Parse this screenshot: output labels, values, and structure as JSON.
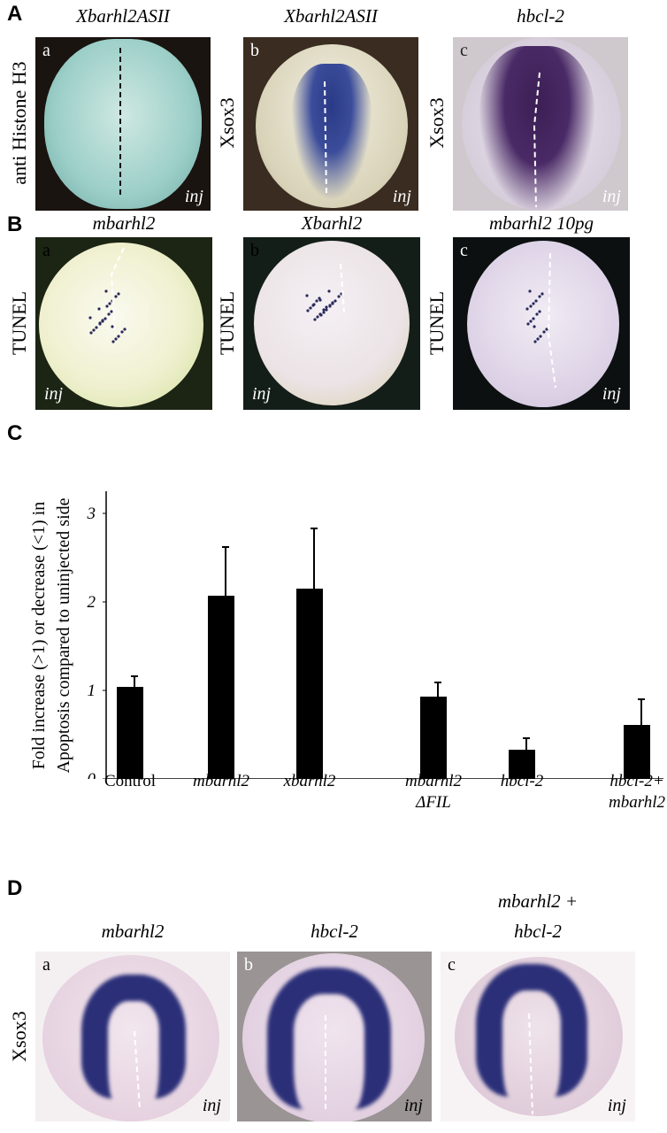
{
  "panel_A": {
    "label": "A",
    "images": [
      {
        "letter": "a",
        "title": "Xbarhl2ASII",
        "side_label": "anti Histone H3",
        "corner": "inj"
      },
      {
        "letter": "b",
        "title": "Xbarhl2ASII",
        "side_label": "Xsox3",
        "corner": "inj"
      },
      {
        "letter": "c",
        "title": "hbcl-2",
        "side_label": "Xsox3",
        "corner": "inj"
      }
    ]
  },
  "panel_B": {
    "label": "B",
    "images": [
      {
        "letter": "a",
        "title": "mbarhl2",
        "side_label": "TUNEL",
        "corner": "inj"
      },
      {
        "letter": "b",
        "title": "Xbarhl2",
        "side_label": "TUNEL",
        "corner": "inj"
      },
      {
        "letter": "c",
        "title": "mbarhl2 10pg",
        "side_label": "TUNEL",
        "corner": "inj"
      }
    ]
  },
  "chart_data": {
    "type": "bar",
    "label": "C",
    "ylabel": [
      "Fold increase (>1) or decrease (<1) in",
      "Apoptosis compared to uninjected side"
    ],
    "categories": [
      "Control",
      "mbarhl2",
      "xbarhl2",
      "mbarhl2 ΔFIL",
      "hbcl-2",
      "hbcl-2+ mbarhl2"
    ],
    "values": [
      1.04,
      2.07,
      2.15,
      0.93,
      0.33,
      0.61
    ],
    "errors": [
      0.12,
      0.55,
      0.68,
      0.16,
      0.13,
      0.29
    ],
    "color": "#000000",
    "ylim": [
      0,
      3.25
    ],
    "yticks": [
      0,
      1,
      2,
      3
    ]
  },
  "panel_D": {
    "label": "D",
    "side_label": "Xsox3",
    "images": [
      {
        "letter": "a",
        "title": [
          "mbarhl2"
        ],
        "corner": "inj"
      },
      {
        "letter": "b",
        "title": [
          "hbcl-2"
        ],
        "corner": "inj"
      },
      {
        "letter": "c",
        "title": [
          "mbarhl2 +",
          "hbcl-2"
        ],
        "corner": "inj"
      }
    ]
  }
}
